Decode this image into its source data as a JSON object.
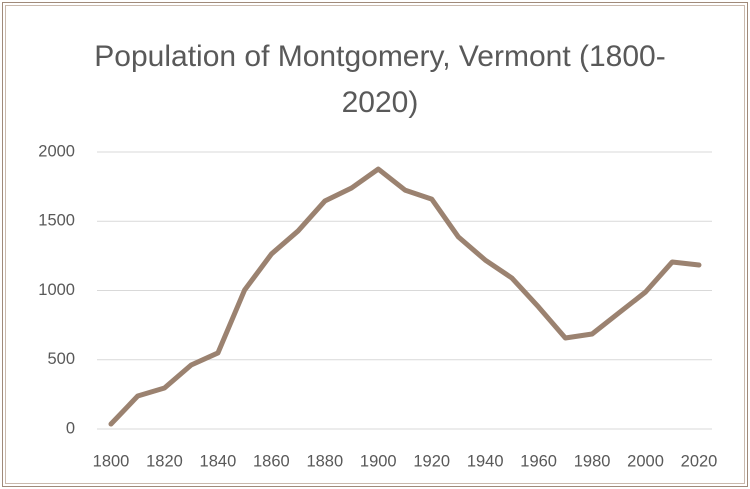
{
  "chart_data": {
    "type": "line",
    "title": "Population of Montgomery, Vermont (1800-2020)",
    "x": [
      1800,
      1810,
      1820,
      1830,
      1840,
      1850,
      1860,
      1870,
      1880,
      1890,
      1900,
      1910,
      1920,
      1930,
      1940,
      1950,
      1960,
      1970,
      1980,
      1990,
      2000,
      2010,
      2020
    ],
    "series": [
      {
        "name": "Population",
        "color": "#9b8270",
        "values": [
          36,
          238,
          296,
          462,
          549,
          1004,
          1263,
          1430,
          1646,
          1740,
          1877,
          1725,
          1660,
          1386,
          1220,
          1090,
          880,
          657,
          686,
          838,
          989,
          1206,
          1184
        ]
      }
    ],
    "xlim": [
      1800,
      2020
    ],
    "xticks": [
      1800,
      1820,
      1840,
      1860,
      1880,
      1900,
      1920,
      1940,
      1960,
      1980,
      2000,
      2020
    ],
    "ylim": [
      0,
      2000
    ],
    "yticks": [
      0,
      500,
      1000,
      1500,
      2000
    ],
    "grid": true
  }
}
